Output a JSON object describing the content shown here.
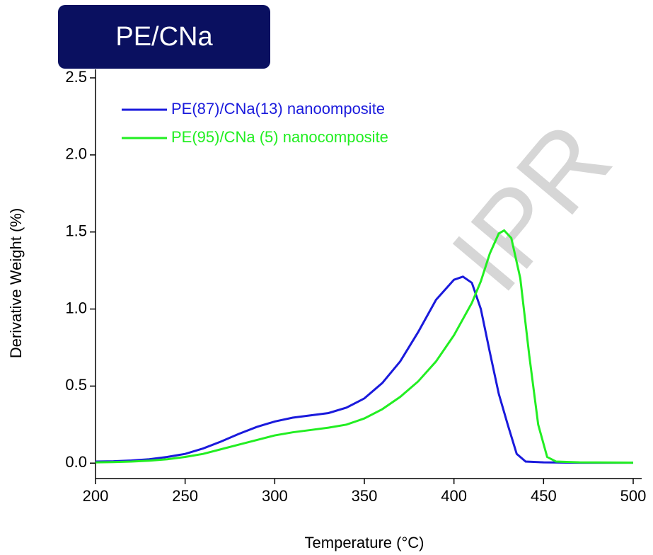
{
  "chart_data": {
    "type": "line",
    "title": "PE/CNa",
    "watermark": "IPR",
    "x_label": "Temperature (°C)",
    "y_label": "Derivative Weight (%)",
    "xlim": [
      200,
      500
    ],
    "ylim": [
      -0.1,
      2.5
    ],
    "xticks": [
      200,
      250,
      300,
      350,
      400,
      450,
      500
    ],
    "yticks": [
      {
        "value": 0,
        "label": "0.0"
      },
      0.5,
      {
        "value": 1,
        "label": "1.0"
      },
      1.5,
      {
        "value": 2,
        "label": "2.0"
      },
      2.5
    ],
    "series": [
      {
        "name": "PE(87)/CNa(13) nanoomposite",
        "color": "#1a1adc",
        "x": [
          200,
          210,
          220,
          230,
          240,
          250,
          260,
          270,
          280,
          290,
          300,
          310,
          320,
          330,
          340,
          350,
          360,
          370,
          380,
          390,
          400,
          405,
          410,
          415,
          420,
          425,
          430,
          435,
          440,
          450,
          470,
          500
        ],
        "values": [
          0.01,
          0.012,
          0.017,
          0.025,
          0.04,
          0.06,
          0.095,
          0.14,
          0.19,
          0.235,
          0.27,
          0.295,
          0.31,
          0.325,
          0.36,
          0.42,
          0.52,
          0.66,
          0.85,
          1.06,
          1.19,
          1.21,
          1.17,
          1.0,
          0.72,
          0.45,
          0.25,
          0.06,
          0.01,
          0.005,
          0.003,
          0.003
        ]
      },
      {
        "name": "PE(95)/CNa (5) nanocomposite",
        "color": "#22ee22",
        "x": [
          200,
          210,
          220,
          230,
          240,
          250,
          260,
          270,
          280,
          290,
          300,
          310,
          320,
          330,
          340,
          350,
          360,
          370,
          380,
          390,
          400,
          410,
          415,
          420,
          425,
          428,
          432,
          437,
          442,
          447,
          452,
          457,
          470,
          500
        ],
        "values": [
          0.005,
          0.007,
          0.01,
          0.016,
          0.025,
          0.04,
          0.06,
          0.09,
          0.12,
          0.15,
          0.18,
          0.2,
          0.215,
          0.23,
          0.25,
          0.29,
          0.35,
          0.43,
          0.53,
          0.66,
          0.83,
          1.04,
          1.18,
          1.36,
          1.49,
          1.51,
          1.46,
          1.2,
          0.7,
          0.25,
          0.04,
          0.01,
          0.005,
          0.003
        ]
      }
    ]
  }
}
